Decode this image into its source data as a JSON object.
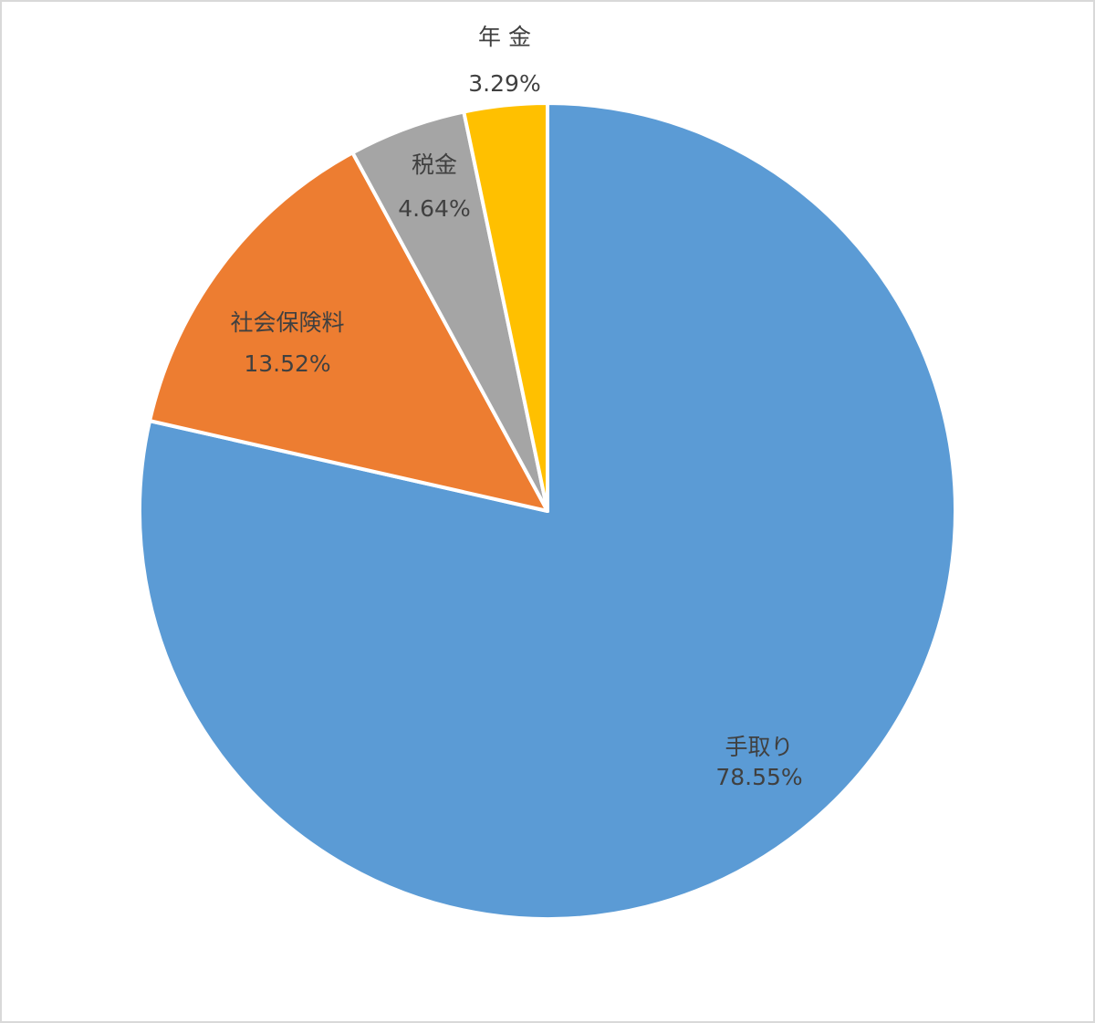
{
  "chart_data": {
    "type": "pie",
    "categories": [
      "手取り",
      "社会保険料",
      "税金",
      "年 金"
    ],
    "values": [
      78.55,
      13.52,
      4.64,
      3.29
    ],
    "value_labels": [
      "78.55%",
      "13.52%",
      "4.64%",
      "3.29%"
    ],
    "colors": [
      "#5b9bd5",
      "#ed7d31",
      "#a5a5a5",
      "#ffc000"
    ]
  }
}
